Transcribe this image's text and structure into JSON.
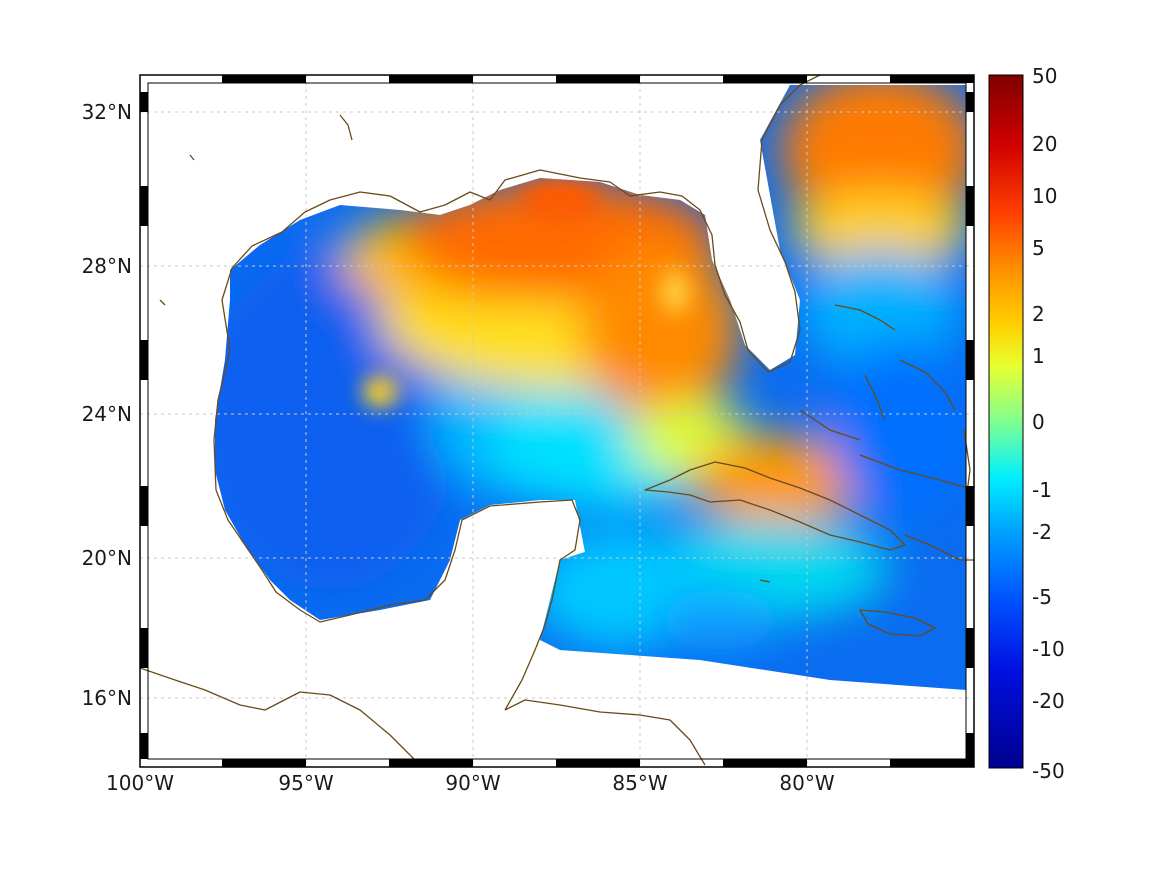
{
  "map": {
    "lon_labels": [
      "100°W",
      "95°W",
      "90°W",
      "85°W",
      "80°W"
    ],
    "lat_labels": [
      "32°N",
      "28°N",
      "24°N",
      "20°N",
      "16°N"
    ],
    "coastline_color": "#6b4a1a",
    "grid": true
  },
  "colorbar": {
    "labels": [
      "50",
      "20",
      "10",
      "5",
      "2",
      "1",
      "0",
      "-1",
      "-2",
      "-5",
      "-10",
      "-20",
      "-50"
    ],
    "colormap": [
      "#800000",
      "#ff0000",
      "#ff8000",
      "#ffff00",
      "#80ff80",
      "#00ffff",
      "#0080ff",
      "#0000ff",
      "#00008f"
    ]
  }
}
